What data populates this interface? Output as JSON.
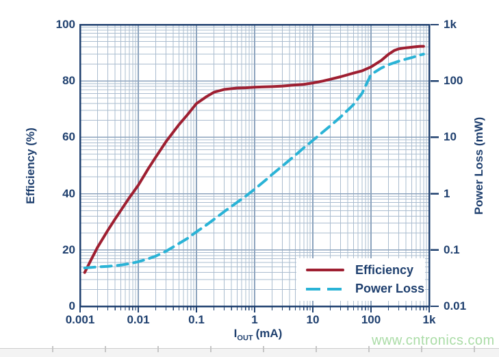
{
  "watermark": "www.cntronics.com",
  "colors": {
    "text_navy": "#1E3F6E",
    "grid_minor": "#AABCCF",
    "grid_major": "#8CA3BD",
    "border_navy": "#1E3F6E",
    "efficiency_red": "#9E1F31",
    "power_loss_cyan": "#2AB3D6",
    "watermark_green": "#AADCA6"
  },
  "chart_data": {
    "type": "line",
    "title": "",
    "x_axis": {
      "label_main": "I",
      "label_sub": "OUT",
      "label_unit": "(mA)",
      "scale": "log",
      "min": 0.001,
      "max": 1000,
      "tick_labels": [
        "0.001",
        "0.01",
        "0.1",
        "1",
        "10",
        "100",
        "1k"
      ],
      "tick_values": [
        0.001,
        0.01,
        0.1,
        1,
        10,
        100,
        1000
      ]
    },
    "left_axis": {
      "label": "Efficiency (%)",
      "scale": "linear",
      "min": 0,
      "max": 100,
      "tick_labels": [
        "0",
        "20",
        "40",
        "60",
        "80",
        "100"
      ],
      "tick_values": [
        0,
        20,
        40,
        60,
        80,
        100
      ]
    },
    "right_axis": {
      "label": "Power Loss (mW)",
      "scale": "log",
      "min": 0.01,
      "max": 1000,
      "tick_labels": [
        "1k",
        "100",
        "10",
        "1",
        "0.1",
        "0.01"
      ],
      "tick_values": [
        1000,
        100,
        10,
        1,
        0.1,
        0.01
      ]
    },
    "grid": true,
    "legend": {
      "position": "inside-bottom-right",
      "entries": [
        {
          "label": "Efficiency",
          "color": "#9E1F31",
          "style": "solid"
        },
        {
          "label": "Power Loss",
          "color": "#2AB3D6",
          "style": "dashed"
        }
      ]
    },
    "series": [
      {
        "name": "Efficiency",
        "axis": "left",
        "color": "#9E1F31",
        "style": "solid",
        "points": [
          [
            0.0012,
            12
          ],
          [
            0.0015,
            16
          ],
          [
            0.002,
            21
          ],
          [
            0.003,
            27
          ],
          [
            0.004,
            31
          ],
          [
            0.005,
            34
          ],
          [
            0.007,
            38.5
          ],
          [
            0.01,
            43
          ],
          [
            0.015,
            49
          ],
          [
            0.02,
            53
          ],
          [
            0.03,
            58.5
          ],
          [
            0.05,
            64.5
          ],
          [
            0.07,
            68
          ],
          [
            0.1,
            72
          ],
          [
            0.15,
            74.5
          ],
          [
            0.2,
            76
          ],
          [
            0.3,
            77
          ],
          [
            0.5,
            77.5
          ],
          [
            0.7,
            77.6
          ],
          [
            1,
            77.8
          ],
          [
            2,
            78
          ],
          [
            3,
            78.2
          ],
          [
            5,
            78.6
          ],
          [
            7,
            78.8
          ],
          [
            10,
            79.3
          ],
          [
            15,
            80
          ],
          [
            20,
            80.6
          ],
          [
            30,
            81.5
          ],
          [
            50,
            82.8
          ],
          [
            70,
            83.6
          ],
          [
            100,
            85
          ],
          [
            150,
            87.3
          ],
          [
            200,
            89.5
          ],
          [
            250,
            90.8
          ],
          [
            300,
            91.4
          ],
          [
            400,
            91.8
          ],
          [
            500,
            92
          ],
          [
            600,
            92.2
          ],
          [
            700,
            92.3
          ],
          [
            800,
            92.3
          ]
        ]
      },
      {
        "name": "Power Loss",
        "axis": "right",
        "color": "#2AB3D6",
        "style": "dashed",
        "points": [
          [
            0.0012,
            0.048
          ],
          [
            0.002,
            0.05
          ],
          [
            0.003,
            0.051
          ],
          [
            0.005,
            0.054
          ],
          [
            0.007,
            0.057
          ],
          [
            0.01,
            0.062
          ],
          [
            0.015,
            0.07
          ],
          [
            0.02,
            0.078
          ],
          [
            0.03,
            0.095
          ],
          [
            0.05,
            0.13
          ],
          [
            0.07,
            0.16
          ],
          [
            0.1,
            0.21
          ],
          [
            0.15,
            0.28
          ],
          [
            0.2,
            0.35
          ],
          [
            0.3,
            0.48
          ],
          [
            0.5,
            0.7
          ],
          [
            0.7,
            0.9
          ],
          [
            1,
            1.2
          ],
          [
            1.5,
            1.7
          ],
          [
            2,
            2.2
          ],
          [
            3,
            3.1
          ],
          [
            5,
            4.8
          ],
          [
            7,
            6.5
          ],
          [
            10,
            8.8
          ],
          [
            15,
            12.5
          ],
          [
            20,
            16
          ],
          [
            30,
            23
          ],
          [
            50,
            38
          ],
          [
            70,
            60
          ],
          [
            100,
            130
          ],
          [
            150,
            170
          ],
          [
            200,
            195
          ],
          [
            300,
            225
          ],
          [
            400,
            245
          ],
          [
            500,
            260
          ],
          [
            700,
            290
          ],
          [
            800,
            300
          ]
        ]
      }
    ]
  }
}
